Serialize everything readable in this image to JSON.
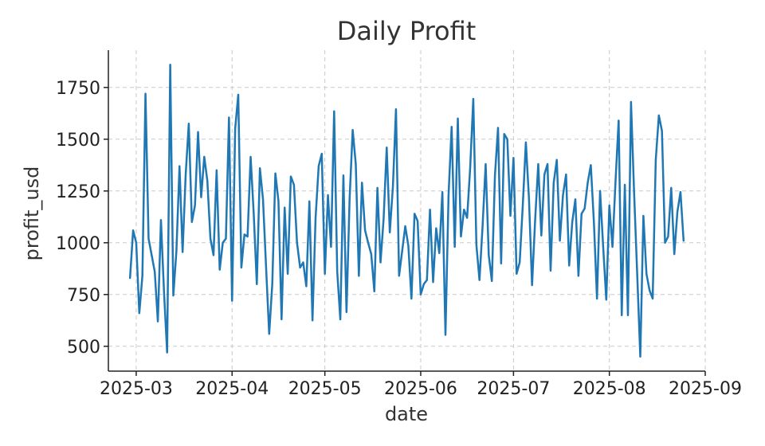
{
  "chart_data": {
    "type": "line",
    "title": "Daily Profit",
    "xlabel": "date",
    "ylabel": "profit_usd",
    "x_axis": {
      "type": "date",
      "range": [
        "2025-02-20",
        "2025-09-01"
      ],
      "ticks": [
        "2025-03-01",
        "2025-04-01",
        "2025-05-01",
        "2025-06-01",
        "2025-07-01",
        "2025-08-01",
        "2025-09-01"
      ],
      "tick_labels": [
        "2025-03",
        "2025-04",
        "2025-05",
        "2025-06",
        "2025-07",
        "2025-08",
        "2025-09"
      ]
    },
    "y_axis": {
      "range": [
        380,
        1930
      ],
      "ticks": [
        500,
        750,
        1000,
        1250,
        1500,
        1750
      ],
      "tick_labels": [
        "500",
        "750",
        "1000",
        "1250",
        "1500",
        "1750"
      ]
    },
    "grid": true,
    "legend": "none",
    "series": [
      {
        "color": "#1f77b4",
        "x": [
          "2025-02-27",
          "2025-02-28",
          "2025-03-01",
          "2025-03-02",
          "2025-03-03",
          "2025-03-04",
          "2025-03-05",
          "2025-03-06",
          "2025-03-07",
          "2025-03-08",
          "2025-03-09",
          "2025-03-10",
          "2025-03-11",
          "2025-03-12",
          "2025-03-13",
          "2025-03-14",
          "2025-03-15",
          "2025-03-16",
          "2025-03-17",
          "2025-03-18",
          "2025-03-19",
          "2025-03-20",
          "2025-03-21",
          "2025-03-22",
          "2025-03-23",
          "2025-03-24",
          "2025-03-25",
          "2025-03-26",
          "2025-03-27",
          "2025-03-28",
          "2025-03-29",
          "2025-03-30",
          "2025-03-31",
          "2025-04-01",
          "2025-04-02",
          "2025-04-03",
          "2025-04-04",
          "2025-04-05",
          "2025-04-06",
          "2025-04-07",
          "2025-04-08",
          "2025-04-09",
          "2025-04-10",
          "2025-04-11",
          "2025-04-12",
          "2025-04-13",
          "2025-04-14",
          "2025-04-15",
          "2025-04-16",
          "2025-04-17",
          "2025-04-18",
          "2025-04-19",
          "2025-04-20",
          "2025-04-21",
          "2025-04-22",
          "2025-04-23",
          "2025-04-24",
          "2025-04-25",
          "2025-04-26",
          "2025-04-27",
          "2025-04-28",
          "2025-04-29",
          "2025-04-30",
          "2025-05-01",
          "2025-05-02",
          "2025-05-03",
          "2025-05-04",
          "2025-05-05",
          "2025-05-06",
          "2025-05-07",
          "2025-05-08",
          "2025-05-09",
          "2025-05-10",
          "2025-05-11",
          "2025-05-12",
          "2025-05-13",
          "2025-05-14",
          "2025-05-15",
          "2025-05-16",
          "2025-05-17",
          "2025-05-18",
          "2025-05-19",
          "2025-05-20",
          "2025-05-21",
          "2025-05-22",
          "2025-05-23",
          "2025-05-24",
          "2025-05-25",
          "2025-05-26",
          "2025-05-27",
          "2025-05-28",
          "2025-05-29",
          "2025-05-30",
          "2025-05-31",
          "2025-06-01",
          "2025-06-02",
          "2025-06-03",
          "2025-06-04",
          "2025-06-05",
          "2025-06-06",
          "2025-06-07",
          "2025-06-08",
          "2025-06-09",
          "2025-06-10",
          "2025-06-11",
          "2025-06-12",
          "2025-06-13",
          "2025-06-14",
          "2025-06-15",
          "2025-06-16",
          "2025-06-17",
          "2025-06-18",
          "2025-06-19",
          "2025-06-20",
          "2025-06-21",
          "2025-06-22",
          "2025-06-23",
          "2025-06-24",
          "2025-06-25",
          "2025-06-26",
          "2025-06-27",
          "2025-06-28",
          "2025-06-29",
          "2025-06-30",
          "2025-07-01",
          "2025-07-02",
          "2025-07-03",
          "2025-07-04",
          "2025-07-05",
          "2025-07-06",
          "2025-07-07",
          "2025-07-08",
          "2025-07-09",
          "2025-07-10",
          "2025-07-11",
          "2025-07-12",
          "2025-07-13",
          "2025-07-14",
          "2025-07-15",
          "2025-07-16",
          "2025-07-17",
          "2025-07-18",
          "2025-07-19",
          "2025-07-20",
          "2025-07-21",
          "2025-07-22",
          "2025-07-23",
          "2025-07-24",
          "2025-07-25",
          "2025-07-26",
          "2025-07-27",
          "2025-07-28",
          "2025-07-29",
          "2025-07-30",
          "2025-07-31",
          "2025-08-01",
          "2025-08-02",
          "2025-08-03",
          "2025-08-04",
          "2025-08-05",
          "2025-08-06",
          "2025-08-07",
          "2025-08-08",
          "2025-08-09",
          "2025-08-10",
          "2025-08-11",
          "2025-08-12",
          "2025-08-13",
          "2025-08-14",
          "2025-08-15",
          "2025-08-16",
          "2025-08-17",
          "2025-08-18",
          "2025-08-19",
          "2025-08-20",
          "2025-08-21",
          "2025-08-22",
          "2025-08-23",
          "2025-08-24",
          "2025-08-25"
        ],
        "values": [
          830,
          1060,
          1000,
          660,
          840,
          1720,
          1020,
          940,
          860,
          620,
          1110,
          760,
          470,
          1860,
          745,
          960,
          1370,
          955,
          1330,
          1575,
          1100,
          1180,
          1535,
          1220,
          1415,
          1300,
          1020,
          940,
          1350,
          870,
          1000,
          1020,
          1605,
          720,
          1550,
          1715,
          880,
          1040,
          1030,
          1415,
          1140,
          800,
          1360,
          1210,
          880,
          560,
          800,
          1335,
          1200,
          630,
          1170,
          850,
          1320,
          1280,
          1000,
          880,
          905,
          790,
          1200,
          625,
          1120,
          1370,
          1430,
          850,
          1230,
          980,
          1635,
          860,
          630,
          1325,
          665,
          1210,
          1545,
          1380,
          840,
          1290,
          1060,
          1000,
          945,
          765,
          1265,
          905,
          1115,
          1460,
          1050,
          1270,
          1645,
          840,
          960,
          1080,
          985,
          730,
          1140,
          1105,
          750,
          800,
          820,
          1160,
          810,
          1070,
          950,
          1245,
          555,
          1230,
          1560,
          980,
          1600,
          1030,
          1160,
          1120,
          1365,
          1695,
          990,
          820,
          1080,
          1380,
          940,
          815,
          1325,
          1555,
          900,
          1525,
          1500,
          1130,
          1410,
          850,
          905,
          1180,
          1485,
          1215,
          795,
          1110,
          1380,
          1035,
          1330,
          1380,
          865,
          1290,
          1400,
          1010,
          1230,
          1330,
          890,
          1100,
          1210,
          840,
          1140,
          1165,
          1290,
          1375,
          1100,
          730,
          1250,
          980,
          725,
          1180,
          980,
          1300,
          1590,
          650,
          1280,
          650,
          1680,
          1240,
          850,
          450,
          1130,
          850,
          770,
          730,
          1400,
          1615,
          1540,
          1000,
          1030,
          1265,
          945,
          1150,
          1245,
          1010
        ]
      }
    ]
  }
}
